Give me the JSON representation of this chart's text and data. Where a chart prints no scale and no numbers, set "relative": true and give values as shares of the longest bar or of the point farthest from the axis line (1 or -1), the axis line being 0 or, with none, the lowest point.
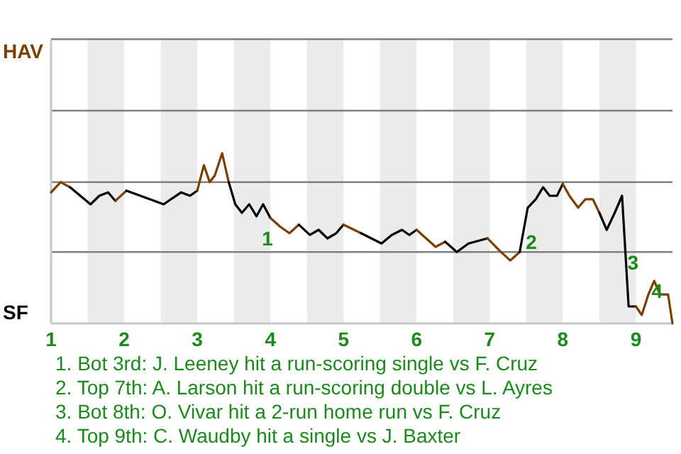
{
  "chart_data": {
    "type": "line",
    "relative": true,
    "series": [
      {
        "color": "#7b3f00",
        "x": [
          1.0,
          1.13,
          1.26
        ],
        "values": [
          0.77,
          0.83,
          0.8
        ]
      },
      {
        "color": "#000000",
        "x": [
          1.26,
          1.54,
          1.66,
          1.78,
          1.88
        ],
        "values": [
          0.8,
          0.7,
          0.75,
          0.77,
          0.72
        ]
      },
      {
        "color": "#7b3f00",
        "x": [
          1.88,
          2.03
        ],
        "values": [
          0.72,
          0.78
        ]
      },
      {
        "color": "#000000",
        "x": [
          2.03,
          2.54,
          2.64,
          2.78,
          2.9,
          3.0
        ],
        "values": [
          0.78,
          0.7,
          0.73,
          0.77,
          0.75,
          0.78
        ]
      },
      {
        "color": "#7b3f00",
        "x": [
          3.0,
          3.09,
          3.17,
          3.24,
          3.34,
          3.43
        ],
        "values": [
          0.78,
          0.93,
          0.83,
          0.87,
          1,
          0.83
        ]
      },
      {
        "color": "#000000",
        "x": [
          3.43,
          3.52,
          3.61,
          3.71,
          3.81,
          3.9,
          4.0
        ],
        "values": [
          0.83,
          0.7,
          0.65,
          0.7,
          0.63,
          0.7,
          0.62
        ]
      },
      {
        "color": "#7b3f00",
        "x": [
          4.0,
          4.13,
          4.26,
          4.39
        ],
        "values": [
          0.62,
          0.57,
          0.53,
          0.58
        ]
      },
      {
        "color": "#000000",
        "x": [
          4.39,
          4.54,
          4.66,
          4.78,
          4.9,
          5.0
        ],
        "values": [
          0.58,
          0.52,
          0.55,
          0.5,
          0.53,
          0.58
        ]
      },
      {
        "color": "#7b3f00",
        "x": [
          5.0,
          5.24
        ],
        "values": [
          0.58,
          0.53
        ]
      },
      {
        "color": "#000000",
        "x": [
          5.24,
          5.52,
          5.66,
          5.8,
          5.9,
          6.0
        ],
        "values": [
          0.53,
          0.47,
          0.52,
          0.55,
          0.52,
          0.55
        ]
      },
      {
        "color": "#7b3f00",
        "x": [
          6.0,
          6.13,
          6.26,
          6.39
        ],
        "values": [
          0.55,
          0.5,
          0.45,
          0.48
        ]
      },
      {
        "color": "#000000",
        "x": [
          6.39,
          6.55,
          6.71,
          6.97
        ],
        "values": [
          0.48,
          0.42,
          0.47,
          0.5
        ]
      },
      {
        "color": "#7b3f00",
        "x": [
          6.97,
          7.13,
          7.28,
          7.41
        ],
        "values": [
          0.5,
          0.43,
          0.37,
          0.42
        ]
      },
      {
        "color": "#000000",
        "x": [
          7.41,
          7.52,
          7.63,
          7.73,
          7.82,
          7.92,
          8.0
        ],
        "values": [
          0.42,
          0.68,
          0.73,
          0.8,
          0.75,
          0.75,
          0.82
        ]
      },
      {
        "color": "#7b3f00",
        "x": [
          8.0,
          8.09,
          8.21,
          8.31,
          8.41,
          8.5
        ],
        "values": [
          0.82,
          0.75,
          0.68,
          0.73,
          0.73,
          0.65
        ]
      },
      {
        "color": "#000000",
        "x": [
          8.5,
          8.6,
          8.71,
          8.81,
          8.9,
          9.0
        ],
        "values": [
          0.65,
          0.55,
          0.65,
          0.75,
          0.1,
          0.1
        ]
      },
      {
        "color": "#7b3f00",
        "x": [
          9.0,
          9.08,
          9.17,
          9.25,
          9.33,
          9.44,
          9.5
        ],
        "values": [
          0.1,
          0.05,
          0.17,
          0.25,
          0.17,
          0.17,
          0
        ]
      }
    ],
    "xlim": [
      1,
      9.5
    ],
    "xticks": [
      1,
      2,
      3,
      4,
      5,
      6,
      7,
      8,
      9
    ],
    "ref_lines": [
      {
        "axis": "y",
        "value": 1.67,
        "color": "#808080"
      },
      {
        "axis": "y",
        "value": 1.25,
        "color": "#808080"
      },
      {
        "axis": "y",
        "value": 0.83,
        "color": "#808080"
      },
      {
        "axis": "y",
        "value": 0.42,
        "color": "#808080"
      }
    ],
    "bands": [
      {
        "axis": "x",
        "from": 1.5,
        "to": 2,
        "color": "#ebebeb"
      },
      {
        "axis": "x",
        "from": 2.5,
        "to": 3,
        "color": "#ebebeb"
      },
      {
        "axis": "x",
        "from": 3.5,
        "to": 4,
        "color": "#ebebeb"
      },
      {
        "axis": "x",
        "from": 4.5,
        "to": 5,
        "color": "#ebebeb"
      },
      {
        "axis": "x",
        "from": 5.5,
        "to": 6,
        "color": "#ebebeb"
      },
      {
        "axis": "x",
        "from": 6.5,
        "to": 7,
        "color": "#ebebeb"
      },
      {
        "axis": "x",
        "from": 7.5,
        "to": 8,
        "color": "#ebebeb"
      },
      {
        "axis": "x",
        "from": 8.5,
        "to": 9,
        "color": "#ebebeb"
      }
    ],
    "annotations": [
      "HAV",
      "SF",
      {
        "text": "1",
        "x": 3.96,
        "y": 0.5
      },
      {
        "text": "2",
        "x": 7.57,
        "y": 0.48
      },
      {
        "text": "3",
        "x": 8.96,
        "y": 0.36
      },
      {
        "text": "4",
        "x": 9.29,
        "y": 0.19
      },
      "1. Bot 3rd: J. Leeney hit a run-scoring single vs F. Cruz",
      "2. Top 7th: A. Larson hit a run-scoring double vs L. Ayres",
      "3. Bot 8th: O. Vivar hit a 2-run home run vs F. Cruz",
      "4. Top 9th: C. Waudby hit a single vs J. Baxter"
    ]
  }
}
